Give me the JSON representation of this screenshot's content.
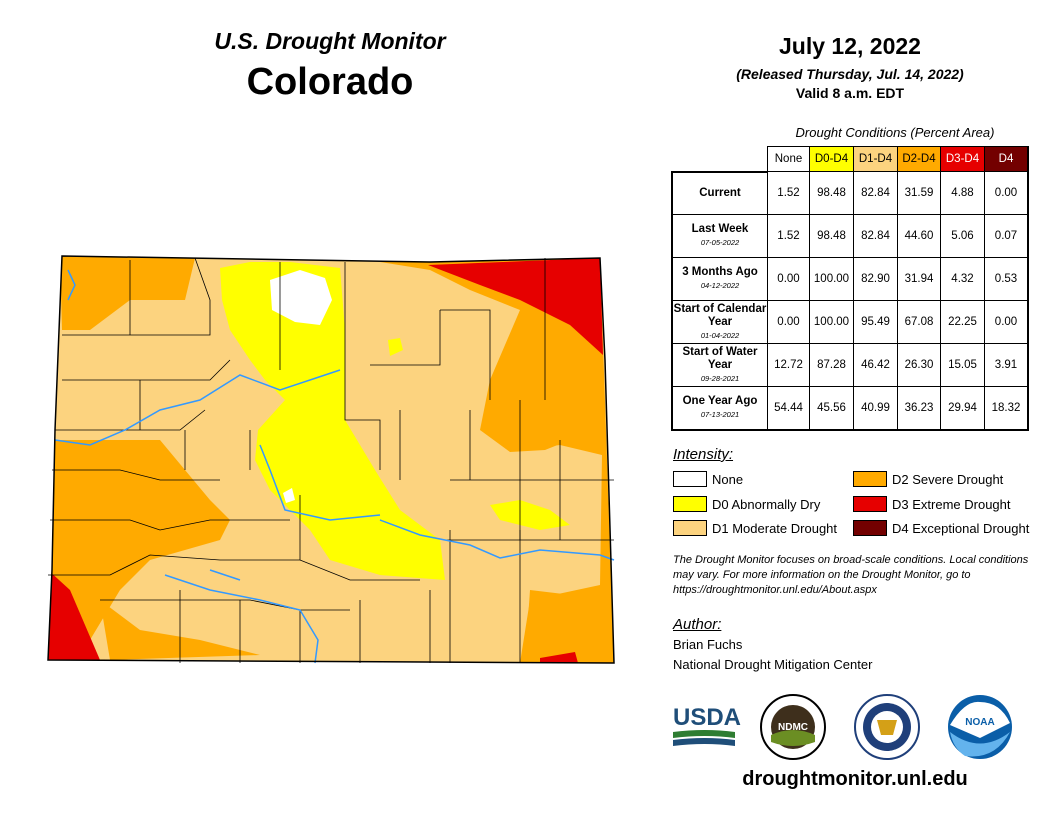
{
  "header": {
    "subtitle": "U.S. Drought Monitor",
    "state": "Colorado",
    "date": "July 12, 2022",
    "released": "(Released Thursday, Jul. 14, 2022)",
    "valid": "Valid 8 a.m. EDT"
  },
  "table": {
    "caption": "Drought Conditions (Percent Area)",
    "columns": [
      {
        "label": "None",
        "color": "#ffffff",
        "text_color": "#000000"
      },
      {
        "label": "D0-D4",
        "color": "#ffff00",
        "text_color": "#000000"
      },
      {
        "label": "D1-D4",
        "color": "#fcd37f",
        "text_color": "#000000"
      },
      {
        "label": "D2-D4",
        "color": "#ffaa00",
        "text_color": "#000000"
      },
      {
        "label": "D3-D4",
        "color": "#e60000",
        "text_color": "#ffffff"
      },
      {
        "label": "D4",
        "color": "#730000",
        "text_color": "#ffffff"
      }
    ],
    "rows": [
      {
        "label": "Current",
        "date": "",
        "values": [
          "1.52",
          "98.48",
          "82.84",
          "31.59",
          "4.88",
          "0.00"
        ]
      },
      {
        "label": "Last Week",
        "date": "07-05-2022",
        "values": [
          "1.52",
          "98.48",
          "82.84",
          "44.60",
          "5.06",
          "0.07"
        ]
      },
      {
        "label": "3 Months Ago",
        "date": "04-12-2022",
        "values": [
          "0.00",
          "100.00",
          "82.90",
          "31.94",
          "4.32",
          "0.53"
        ]
      },
      {
        "label": "Start of Calendar Year",
        "date": "01-04-2022",
        "values": [
          "0.00",
          "100.00",
          "95.49",
          "67.08",
          "22.25",
          "0.00"
        ]
      },
      {
        "label": "Start of Water Year",
        "date": "09-28-2021",
        "values": [
          "12.72",
          "87.28",
          "46.42",
          "26.30",
          "15.05",
          "3.91"
        ]
      },
      {
        "label": "One Year Ago",
        "date": "07-13-2021",
        "values": [
          "54.44",
          "45.56",
          "40.99",
          "36.23",
          "29.94",
          "18.32"
        ]
      }
    ]
  },
  "legend": {
    "title": "Intensity:",
    "items": [
      {
        "label": "None",
        "color": "#ffffff"
      },
      {
        "label": "D0 Abnormally Dry",
        "color": "#ffff00"
      },
      {
        "label": "D1 Moderate Drought",
        "color": "#fcd37f"
      },
      {
        "label": "D2 Severe Drought",
        "color": "#ffaa00"
      },
      {
        "label": "D3 Extreme Drought",
        "color": "#e60000"
      },
      {
        "label": "D4 Exceptional Drought",
        "color": "#730000"
      }
    ]
  },
  "disclaimer": "The Drought Monitor focuses on broad-scale conditions. Local conditions may vary. For more information on the Drought Monitor, go to https://droughtmonitor.unl.edu/About.aspx",
  "author": {
    "title": "Author:",
    "name": "Brian Fuchs",
    "org": "National Drought Mitigation Center"
  },
  "logos": {
    "usda": "USDA",
    "ndmc": "NDMC",
    "noaa": "NOAA"
  },
  "website": "droughtmonitor.unl.edu",
  "map_colors": {
    "none": "#ffffff",
    "d0": "#ffff00",
    "d1": "#fcd37f",
    "d2": "#ffaa00",
    "d3": "#e60000",
    "river": "#3399ff"
  }
}
